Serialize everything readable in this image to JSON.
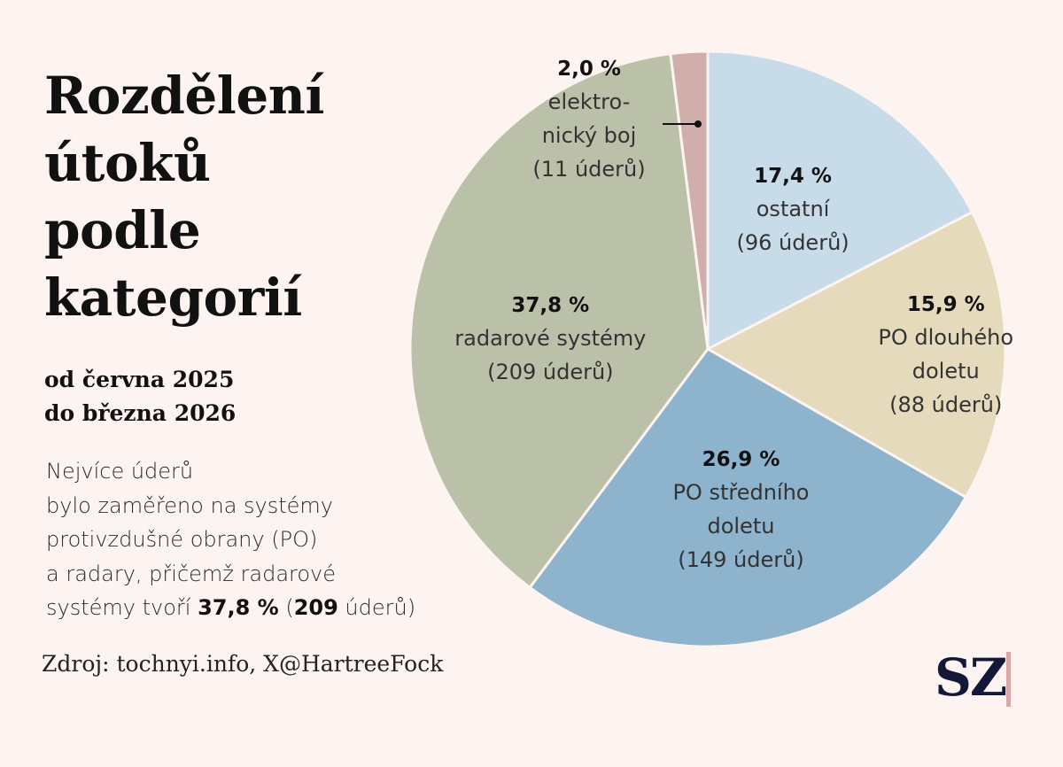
{
  "title": "Rozdělení\nútoků\npodle\nkategorií",
  "subtitle": "od června 2025\ndo března 2026",
  "description": {
    "part1": "Nejvíce úderů\nbylo zaměřeno na systémy\nprotivzdušné obrany (PO)\na radary, přičemž radarové\nsystémy tvoří ",
    "bold_pct": "37,8 %",
    "part2": " (",
    "bold_count": "209",
    "part3": " úderů)"
  },
  "source": "Zdroj: tochnyi.info, X@HartreeFock",
  "logo": "SZ",
  "colors": {
    "background": "#fdf3f1",
    "logo": "#141838",
    "logo_bar": "#d8a9a6"
  },
  "chart_data": {
    "type": "pie",
    "slices": [
      {
        "id": "ostatni",
        "label": "ostatní",
        "percent": 17.4,
        "percent_label": "17,4 %",
        "count_label": "(96 úderů)",
        "color": "#c7dbe9"
      },
      {
        "id": "po-dlouheho",
        "label": "PO dlouhého doletu",
        "percent": 15.9,
        "percent_label": "15,9 %",
        "count_label": "(88 úderů)",
        "color": "#e5dabb"
      },
      {
        "id": "po-stredniho",
        "label": "PO středního doletu",
        "percent": 26.9,
        "percent_label": "26,9 %",
        "count_label": "(149 úderů)",
        "color": "#8eb3cd"
      },
      {
        "id": "radarove",
        "label": "radarové systémy",
        "percent": 37.8,
        "percent_label": "37,8 %",
        "count_label": "(209 úderů)",
        "color": "#bac1a8"
      },
      {
        "id": "elektronicky-boj",
        "label": "elektronický boj",
        "percent": 2.0,
        "percent_label": "2,0 %",
        "count_label": "(11 úderů)",
        "color": "#cfaeab"
      }
    ]
  }
}
